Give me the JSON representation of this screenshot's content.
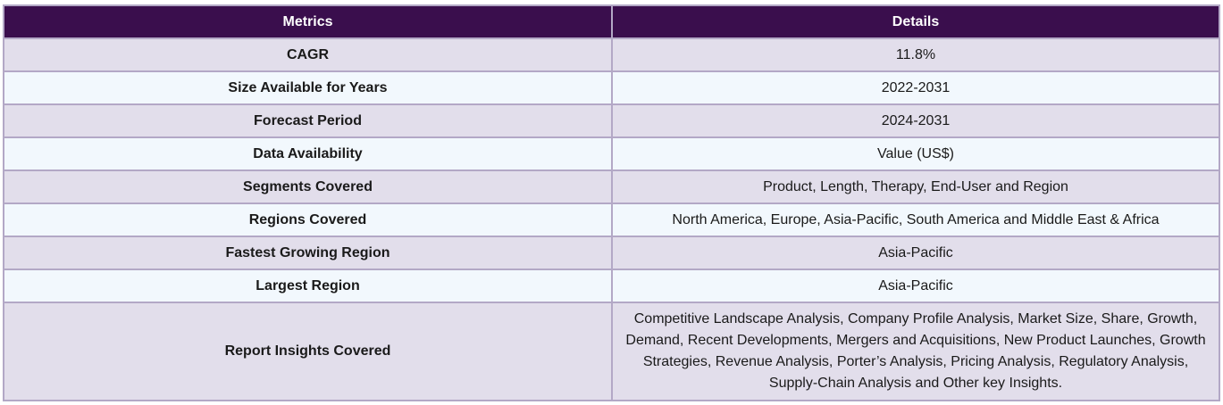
{
  "table": {
    "headers": [
      "Metrics",
      "Details"
    ],
    "rows": [
      {
        "metric": "CAGR",
        "detail": "11.8%"
      },
      {
        "metric": "Size Available for Years",
        "detail": "2022-2031"
      },
      {
        "metric": "Forecast Period",
        "detail": "2024-2031"
      },
      {
        "metric": "Data Availability",
        "detail": "Value (US$)"
      },
      {
        "metric": "Segments Covered",
        "detail": "Product, Length, Therapy, End-User and Region"
      },
      {
        "metric": "Regions Covered",
        "detail": "North America, Europe, Asia-Pacific, South America and Middle East & Africa"
      },
      {
        "metric": "Fastest Growing Region",
        "detail": "Asia-Pacific"
      },
      {
        "metric": "Largest Region",
        "detail": "Asia-Pacific"
      },
      {
        "metric": "Report Insights Covered",
        "detail": "Competitive Landscape Analysis, Company Profile Analysis, Market Size, Share, Growth, Demand, Recent Developments, Mergers and Acquisitions, New Product Launches, Growth Strategies, Revenue Analysis, Porter’s Analysis, Pricing Analysis, Regulatory Analysis, Supply-Chain Analysis and Other key Insights."
      }
    ]
  },
  "colors": {
    "header_bg": "#3a0e4d",
    "row_odd_bg": "#e2deeb",
    "row_even_bg": "#f2f8fd",
    "border": "#b3a8c6"
  }
}
